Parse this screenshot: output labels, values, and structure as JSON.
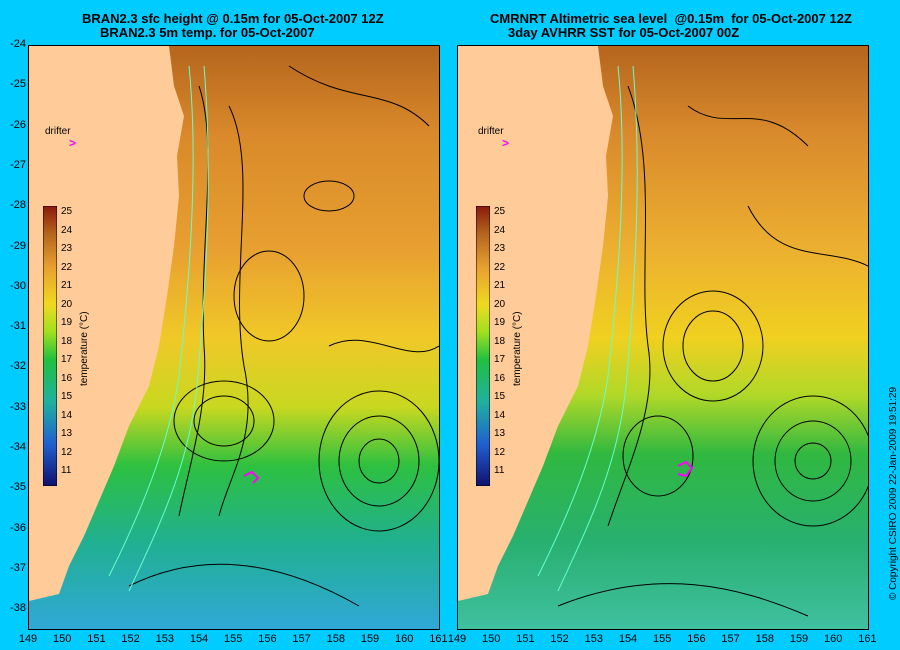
{
  "left_panel": {
    "title_line1": "BRAN2.3 sfc height @ 0.15m for 05-Oct-2007 12Z",
    "title_line2": "BRAN2.3 5m temp. for 05-Oct-2007"
  },
  "right_panel": {
    "title_line1": "CMRNRT Altimetric sea level  @0.15m  for 05-Oct-2007 12Z",
    "title_line2": "3day AVHRR SST for 05-Oct-2007 00Z"
  },
  "y_axis_labels": [
    "-24",
    "-25",
    "-26",
    "-27",
    "-28",
    "-29",
    "-30",
    "-31",
    "-32",
    "-33",
    "-34",
    "-35",
    "-36",
    "-37",
    "-38"
  ],
  "x_axis_labels": [
    "149",
    "150",
    "151",
    "152",
    "153",
    "154",
    "155",
    "156",
    "157",
    "158",
    "159",
    "160",
    "161"
  ],
  "colorbar": {
    "title": "temperature (°C)",
    "ticks": [
      "25",
      "24",
      "23",
      "22",
      "21",
      "20",
      "19",
      "18",
      "17",
      "16",
      "15",
      "14",
      "13",
      "12",
      "11"
    ]
  },
  "drifter_label": "drifter",
  "drifter_marker": ">",
  "copyright": "© Copyright CSIRO 2009     22-Jan-2009 19:51:29",
  "colors": {
    "background": "#00ccff",
    "land": "#ffcc99",
    "drifter": "#ff00ff",
    "contour": "#000000",
    "isobath": "#66ffcc"
  }
}
